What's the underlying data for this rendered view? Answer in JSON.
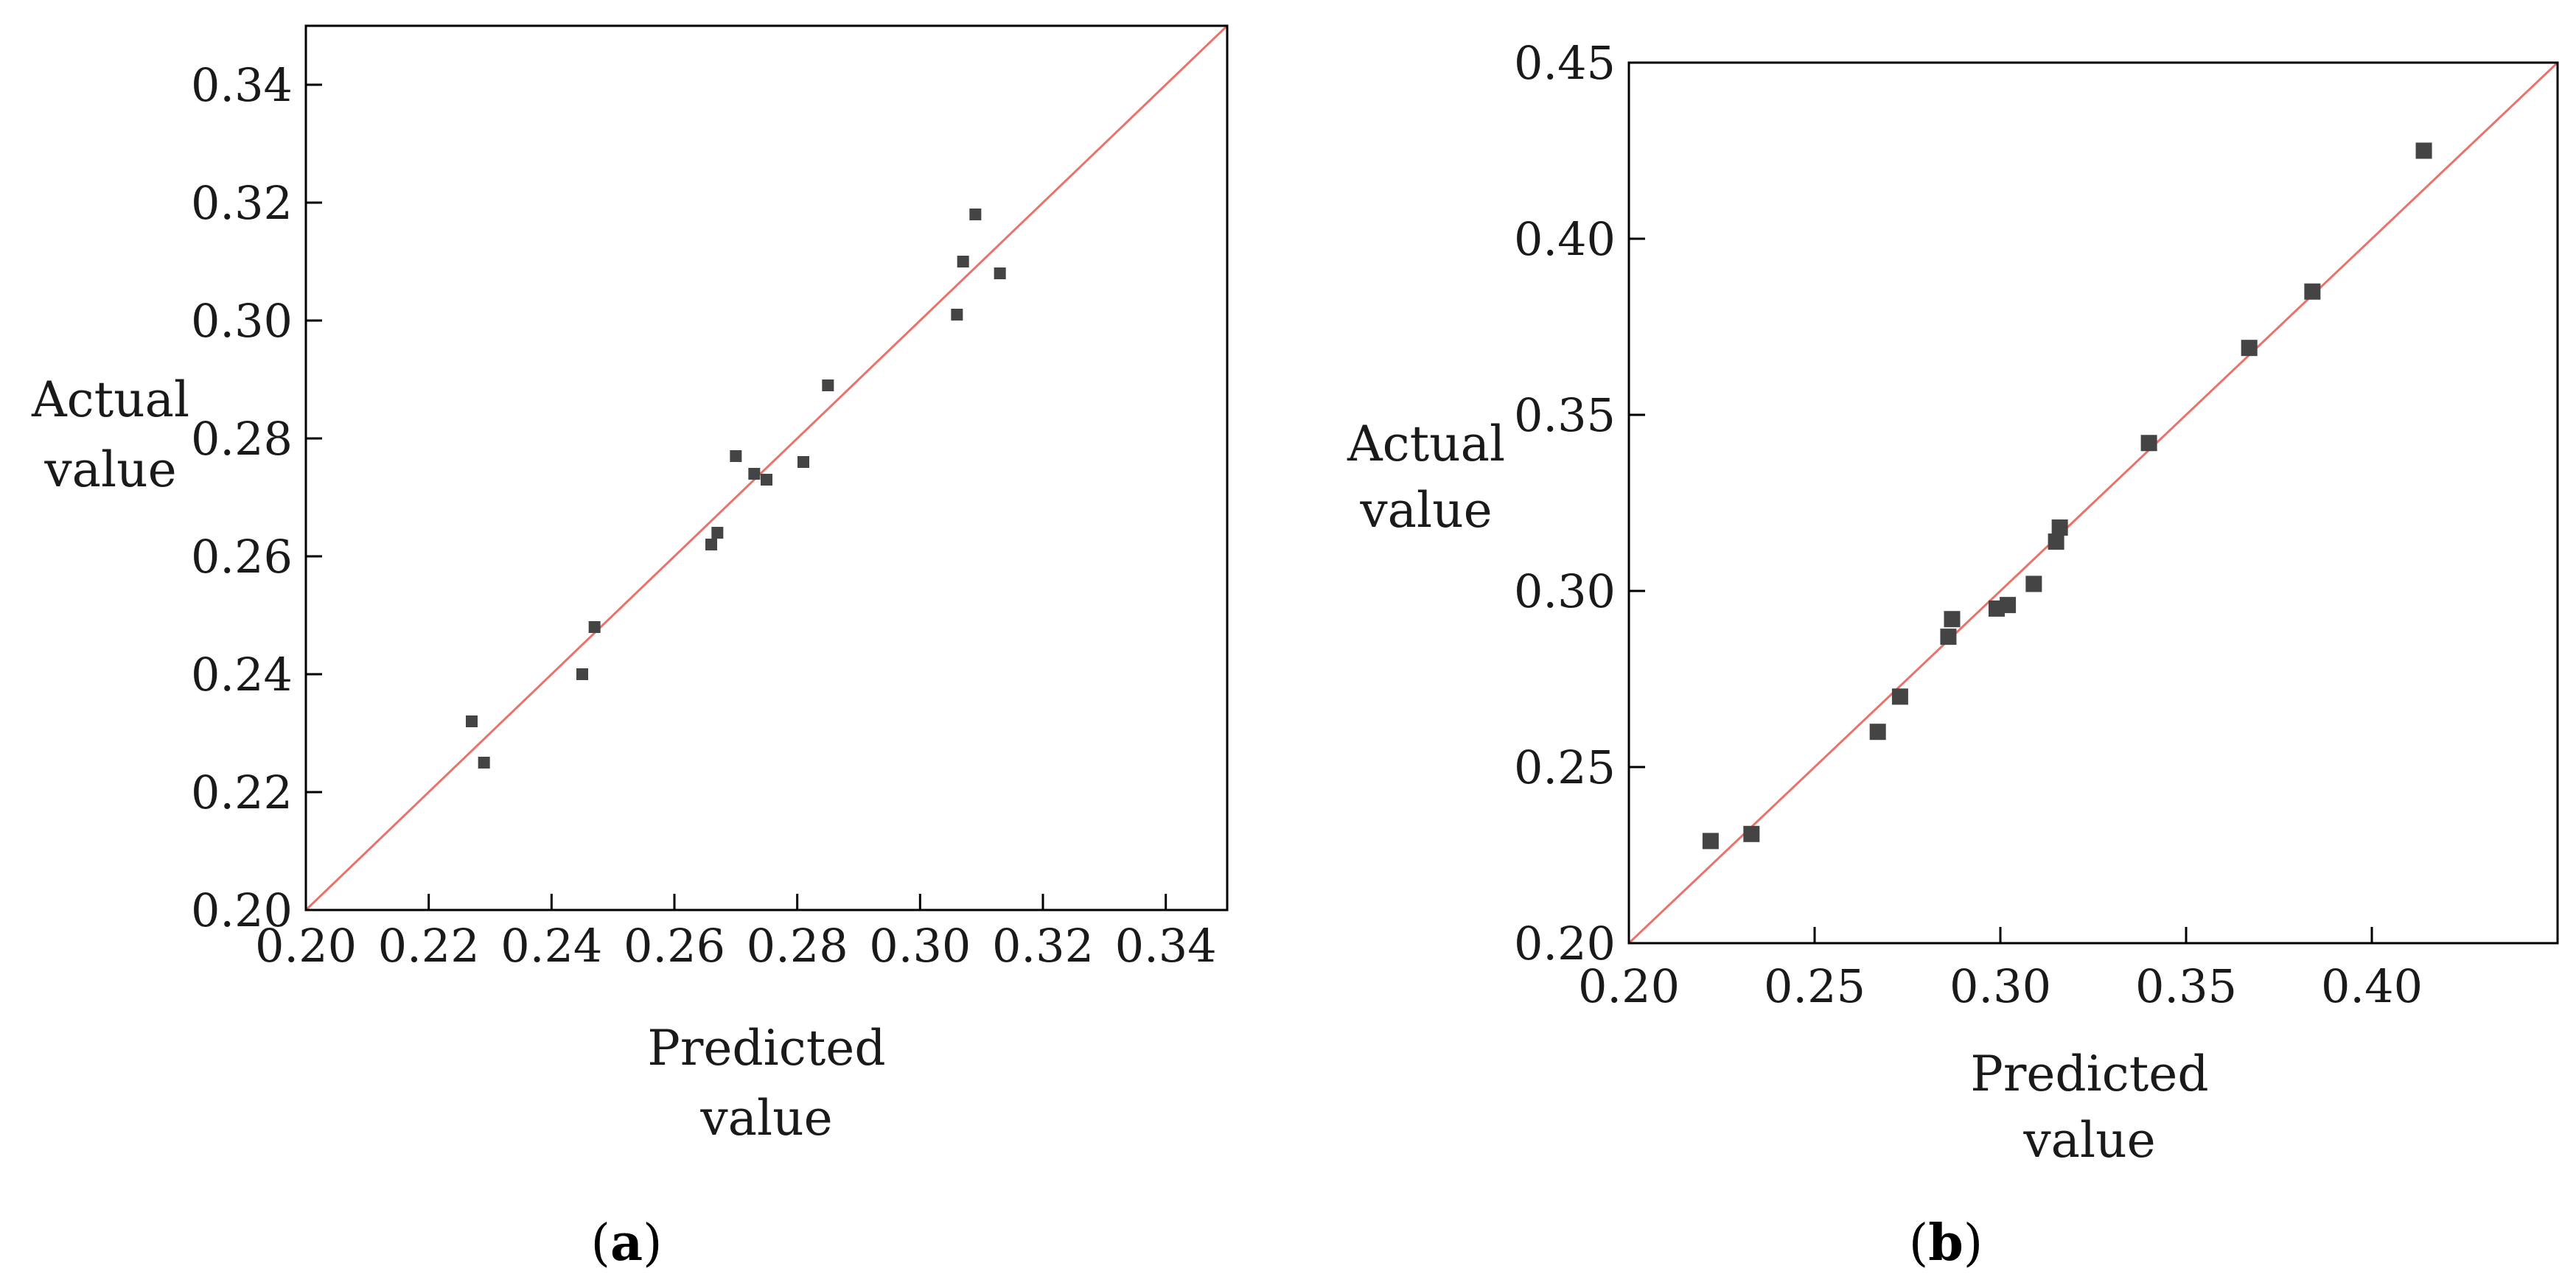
{
  "chart_data": [
    {
      "type": "scatter",
      "panel_label": "a",
      "xlabel": [
        "Predicted",
        "value"
      ],
      "ylabel": [
        "Actual",
        "value"
      ],
      "xlim": [
        0.2,
        0.35
      ],
      "ylim": [
        0.2,
        0.35
      ],
      "xticks": [
        "0.20",
        "0.22",
        "0.24",
        "0.26",
        "0.28",
        "0.30",
        "0.32",
        "0.34"
      ],
      "yticks": [
        "0.20",
        "0.22",
        "0.24",
        "0.26",
        "0.28",
        "0.30",
        "0.32",
        "0.34"
      ],
      "reference_line": "y = x",
      "colors": {
        "points": "#444444",
        "line": "#e8736b",
        "axis": "#000000"
      },
      "points": [
        {
          "x": 0.227,
          "y": 0.232
        },
        {
          "x": 0.229,
          "y": 0.225
        },
        {
          "x": 0.245,
          "y": 0.24
        },
        {
          "x": 0.247,
          "y": 0.248
        },
        {
          "x": 0.266,
          "y": 0.262
        },
        {
          "x": 0.267,
          "y": 0.264
        },
        {
          "x": 0.27,
          "y": 0.277
        },
        {
          "x": 0.273,
          "y": 0.274
        },
        {
          "x": 0.275,
          "y": 0.273
        },
        {
          "x": 0.281,
          "y": 0.276
        },
        {
          "x": 0.285,
          "y": 0.289
        },
        {
          "x": 0.306,
          "y": 0.301
        },
        {
          "x": 0.307,
          "y": 0.31
        },
        {
          "x": 0.309,
          "y": 0.318
        },
        {
          "x": 0.313,
          "y": 0.308
        }
      ]
    },
    {
      "type": "scatter",
      "panel_label": "b",
      "xlabel": [
        "Predicted",
        "value"
      ],
      "ylabel": [
        "Actual",
        "value"
      ],
      "xlim": [
        0.2,
        0.45
      ],
      "ylim": [
        0.2,
        0.45
      ],
      "xticks": [
        "0.20",
        "0.25",
        "0.30",
        "0.35",
        "0.40"
      ],
      "yticks": [
        "0.20",
        "0.25",
        "0.30",
        "0.35",
        "0.40",
        "0.45"
      ],
      "reference_line": "y = x",
      "colors": {
        "points": "#444444",
        "line": "#e8736b",
        "axis": "#000000"
      },
      "points": [
        {
          "x": 0.222,
          "y": 0.229
        },
        {
          "x": 0.233,
          "y": 0.231
        },
        {
          "x": 0.267,
          "y": 0.26
        },
        {
          "x": 0.273,
          "y": 0.27
        },
        {
          "x": 0.286,
          "y": 0.287
        },
        {
          "x": 0.287,
          "y": 0.292
        },
        {
          "x": 0.299,
          "y": 0.295
        },
        {
          "x": 0.302,
          "y": 0.296
        },
        {
          "x": 0.309,
          "y": 0.302
        },
        {
          "x": 0.315,
          "y": 0.314
        },
        {
          "x": 0.316,
          "y": 0.318
        },
        {
          "x": 0.34,
          "y": 0.342
        },
        {
          "x": 0.367,
          "y": 0.369
        },
        {
          "x": 0.384,
          "y": 0.385
        },
        {
          "x": 0.414,
          "y": 0.425
        }
      ]
    }
  ]
}
